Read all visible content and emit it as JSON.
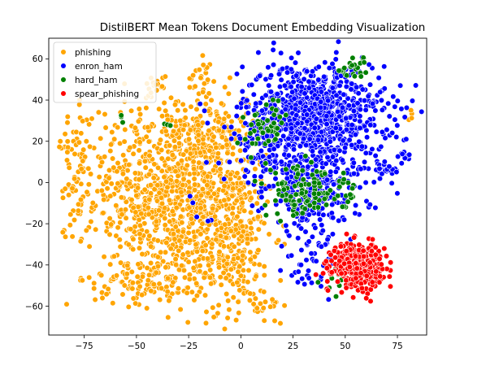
{
  "chart_data": {
    "type": "scatter",
    "title": "DistilBERT Mean Tokens Document Embedding Visualization",
    "xlabel": "",
    "ylabel": "",
    "xlim": [
      -92,
      89
    ],
    "ylim": [
      -74,
      70
    ],
    "x_ticks": [
      -75,
      -50,
      -25,
      0,
      25,
      50,
      75
    ],
    "y_ticks": [
      -60,
      -40,
      -20,
      0,
      20,
      40,
      60
    ],
    "grid": false,
    "legend_position": "top-left",
    "series": [
      {
        "name": "phishing",
        "color": "#FFA500",
        "clusters": [
          {
            "cx": -35,
            "cy": -5,
            "sx": 20,
            "sy": 22,
            "n": 900
          },
          {
            "cx": -5,
            "cy": -25,
            "sx": 10,
            "sy": 18,
            "n": 320
          },
          {
            "cx": -15,
            "cy": 25,
            "sx": 9,
            "sy": 10,
            "n": 150
          },
          {
            "cx": -78,
            "cy": 10,
            "sx": 4,
            "sy": 12,
            "n": 45
          },
          {
            "cx": -42,
            "cy": -48,
            "sx": 14,
            "sy": 6,
            "n": 120
          },
          {
            "cx": -20,
            "cy": 52,
            "sx": 3,
            "sy": 4,
            "n": 18
          },
          {
            "cx": -40,
            "cy": 46,
            "sx": 4,
            "sy": 3,
            "n": 15
          },
          {
            "cx": 13,
            "cy": -60,
            "sx": 4,
            "sy": 5,
            "n": 25
          },
          {
            "cx": 82,
            "cy": 33,
            "sx": 1.5,
            "sy": 1.5,
            "n": 4
          },
          {
            "cx": -82,
            "cy": -3,
            "sx": 2,
            "sy": 2,
            "n": 10
          }
        ]
      },
      {
        "name": "enron_ham",
        "color": "#0000FF",
        "clusters": [
          {
            "cx": 35,
            "cy": 32,
            "sx": 17,
            "sy": 13,
            "n": 950
          },
          {
            "cx": 35,
            "cy": -5,
            "sx": 12,
            "sy": 10,
            "n": 220
          },
          {
            "cx": 35,
            "cy": -35,
            "sx": 8,
            "sy": 7,
            "n": 40
          },
          {
            "cx": 12,
            "cy": 10,
            "sx": 8,
            "sy": 8,
            "n": 60
          },
          {
            "cx": 70,
            "cy": 5,
            "sx": 3,
            "sy": 3,
            "n": 25
          },
          {
            "cx": 78,
            "cy": 13,
            "sx": 2,
            "sy": 2,
            "n": 10
          },
          {
            "cx": 28,
            "cy": -46,
            "sx": 3,
            "sy": 2,
            "n": 10
          },
          {
            "cx": -20,
            "cy": -18,
            "sx": 6,
            "sy": 6,
            "n": 5
          }
        ]
      },
      {
        "name": "hard_ham",
        "color": "#008000",
        "clusters": [
          {
            "cx": 28,
            "cy": -5,
            "sx": 8,
            "sy": 6,
            "n": 90
          },
          {
            "cx": 10,
            "cy": 25,
            "sx": 5,
            "sy": 6,
            "n": 35
          },
          {
            "cx": 55,
            "cy": 55,
            "sx": 4,
            "sy": 3,
            "n": 25
          },
          {
            "cx": 50,
            "cy": -5,
            "sx": 5,
            "sy": 4,
            "n": 25
          },
          {
            "cx": 45,
            "cy": -45,
            "sx": 3,
            "sy": 3,
            "n": 12
          },
          {
            "cx": -57,
            "cy": 31,
            "sx": 1,
            "sy": 2,
            "n": 3
          },
          {
            "cx": -35,
            "cy": 28,
            "sx": 1,
            "sy": 1,
            "n": 3
          },
          {
            "cx": 18,
            "cy": 35,
            "sx": 4,
            "sy": 3,
            "n": 8
          }
        ]
      },
      {
        "name": "spear_phishing",
        "color": "#FF0000",
        "clusters": [
          {
            "cx": 56,
            "cy": -40,
            "sx": 6,
            "sy": 5,
            "n": 420
          }
        ]
      }
    ]
  }
}
